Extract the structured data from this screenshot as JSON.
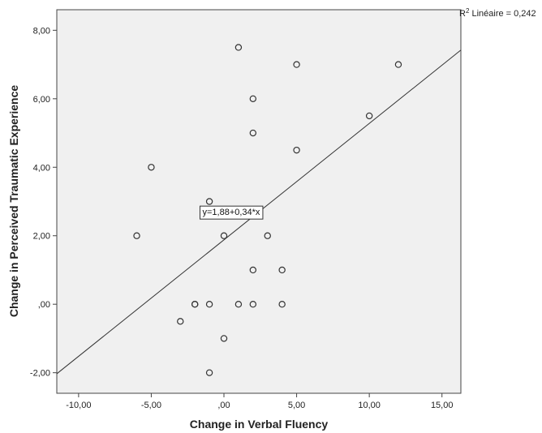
{
  "chart_data": {
    "type": "scatter",
    "title": "",
    "xlabel": "Change in Verbal Fluency",
    "ylabel": "Change in Perceived Traumatic Experience",
    "xlim": [
      -11.5,
      16.3
    ],
    "ylim": [
      -2.6,
      8.6
    ],
    "xticks": [
      -10,
      -5,
      0,
      5,
      10,
      15
    ],
    "xtick_labels": [
      "-10,00",
      "-5,00",
      ",00",
      "5,00",
      "10,00",
      "15,00"
    ],
    "yticks": [
      -2,
      0,
      2,
      4,
      6,
      8
    ],
    "ytick_labels": [
      "-2,00",
      ",00",
      "2,00",
      "4,00",
      "6,00",
      "8,00"
    ],
    "grid": false,
    "plot_background": "#f0f0f0",
    "marker_color": "#333333",
    "points": [
      {
        "x": 1,
        "y": 7.5
      },
      {
        "x": 5,
        "y": 7
      },
      {
        "x": 12,
        "y": 7
      },
      {
        "x": 2,
        "y": 6
      },
      {
        "x": 10,
        "y": 5.5
      },
      {
        "x": 2,
        "y": 5
      },
      {
        "x": 5,
        "y": 4.5
      },
      {
        "x": -5,
        "y": 4
      },
      {
        "x": -1,
        "y": 3
      },
      {
        "x": -6,
        "y": 2
      },
      {
        "x": 0,
        "y": 2
      },
      {
        "x": 3,
        "y": 2
      },
      {
        "x": 2,
        "y": 1
      },
      {
        "x": 4,
        "y": 1
      },
      {
        "x": -2,
        "y": 0
      },
      {
        "x": -2,
        "y": 0
      },
      {
        "x": -1,
        "y": 0
      },
      {
        "x": 1,
        "y": 0
      },
      {
        "x": 2,
        "y": 0
      },
      {
        "x": 4,
        "y": 0
      },
      {
        "x": -3,
        "y": -0.5
      },
      {
        "x": 0,
        "y": -1
      },
      {
        "x": -1,
        "y": -2
      }
    ],
    "fit_line": {
      "intercept": 1.88,
      "slope": 0.34,
      "equation_label": "y=1,88+0,34*x",
      "equation_anchor": {
        "x": 0.5,
        "y": 2.7
      }
    },
    "r2_label": "R2 Linéaire = 0,242",
    "r2_prefix": "R",
    "r2_superscript": "2",
    "r2_text": " Linéaire = 0,242"
  }
}
